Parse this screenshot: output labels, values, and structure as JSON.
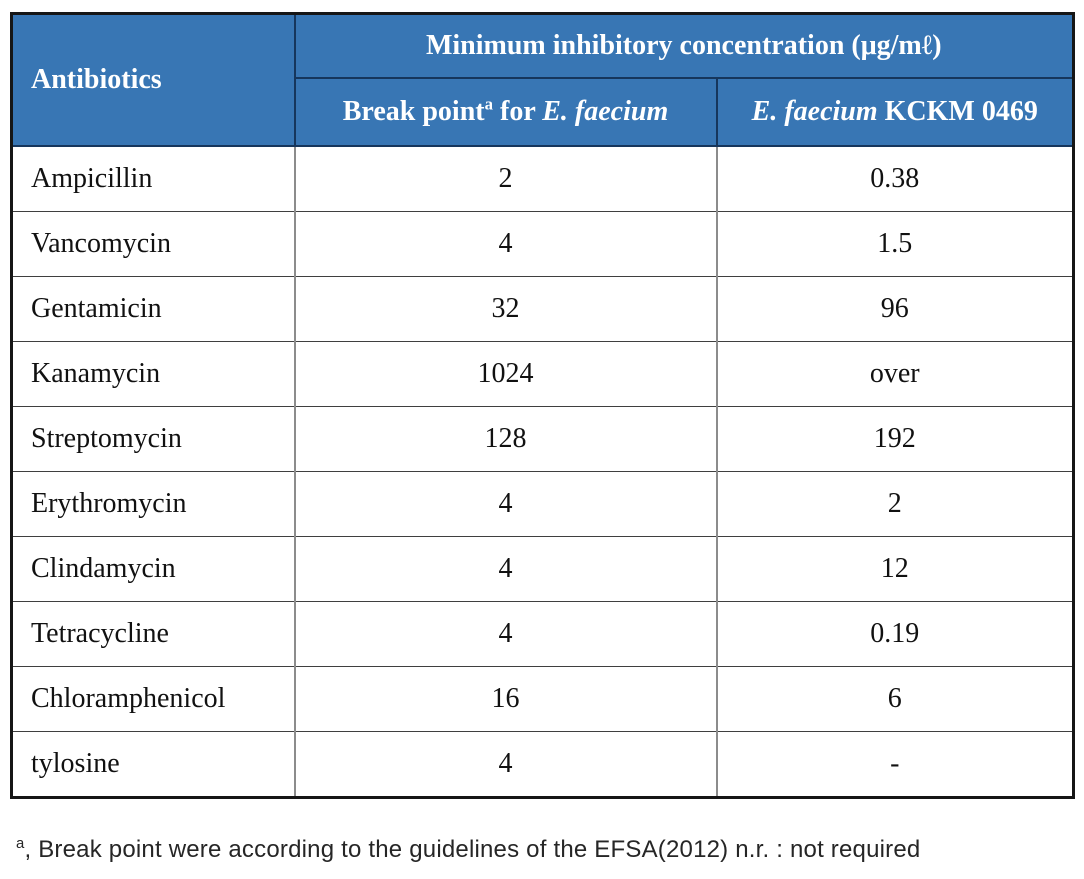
{
  "table": {
    "header": {
      "antibiotics_label": "Antibiotics",
      "mic_title": "Minimum inhibitory concentration (μg/mℓ)",
      "breakpoint_col": {
        "prefix": "Break point",
        "sup": "a",
        "mid": " for ",
        "species": "E. faecium"
      },
      "strain_col": {
        "species": "E. faecium",
        "rest": " KCKM 0469"
      }
    },
    "rows": [
      {
        "name": "Ampicillin",
        "breakpoint": "2",
        "strain": "0.38"
      },
      {
        "name": "Vancomycin",
        "breakpoint": "4",
        "strain": "1.5"
      },
      {
        "name": "Gentamicin",
        "breakpoint": "32",
        "strain": "96"
      },
      {
        "name": "Kanamycin",
        "breakpoint": "1024",
        "strain": "over"
      },
      {
        "name": "Streptomycin",
        "breakpoint": "128",
        "strain": "192"
      },
      {
        "name": "Erythromycin",
        "breakpoint": "4",
        "strain": "2"
      },
      {
        "name": "Clindamycin",
        "breakpoint": "4",
        "strain": "12"
      },
      {
        "name": "Tetracycline",
        "breakpoint": "4",
        "strain": "0.19"
      },
      {
        "name": "Chloramphenicol",
        "breakpoint": "16",
        "strain": "6"
      },
      {
        "name": "tylosine",
        "breakpoint": "4",
        "strain": "-"
      }
    ]
  },
  "footnote": {
    "sup": "a",
    "text": ", Break point were according to the guidelines of the EFSA(2012) n.r. : not required"
  },
  "colors": {
    "header_bg": "#3876b4",
    "header_border": "#16365c",
    "grid_vertical": "#8c8c8c",
    "grid_horizontal": "#3f3f3f",
    "outer_border": "#161616"
  }
}
